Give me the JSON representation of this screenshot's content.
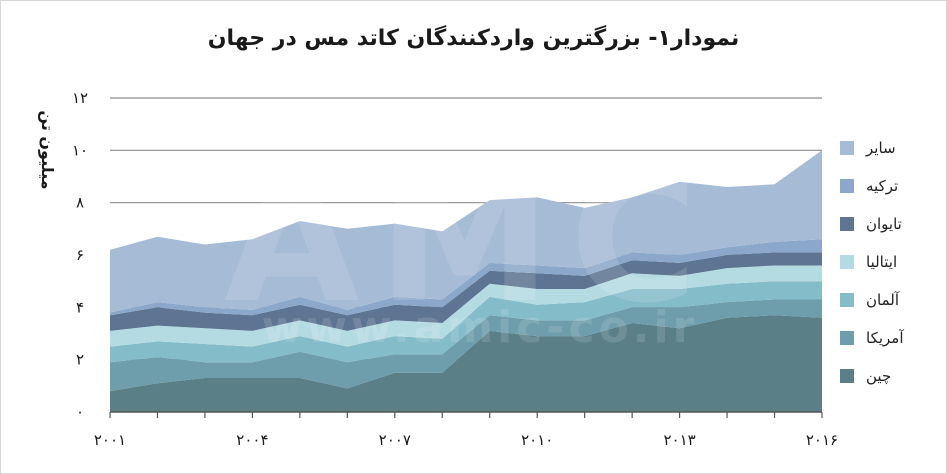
{
  "title": "نمودار۱- بزرگترین واردکنندگان کاتد مس در جهان",
  "watermark": {
    "big": "AMC",
    "url": "www.amic-co.ir"
  },
  "chart_data": {
    "type": "area",
    "stacked": true,
    "title": "نمودار۱- بزرگترین واردکنندگان کاتد مس در جهان",
    "xlabel": "",
    "ylabel": "میلیون تن",
    "x": [
      2001,
      2002,
      2003,
      2004,
      2005,
      2006,
      2007,
      2008,
      2009,
      2010,
      2011,
      2012,
      2013,
      2014,
      2015,
      2016
    ],
    "x_tick_labels": [
      "۲۰۰۱",
      "۲۰۰۴",
      "۲۰۰۷",
      "۲۰۱۰",
      "۲۰۱۳",
      "۲۰۱۶"
    ],
    "x_tick_values": [
      2001,
      2004,
      2007,
      2010,
      2013,
      2016
    ],
    "y_tick_labels": [
      "۰",
      "۲",
      "۴",
      "۶",
      "۸",
      "۱۰",
      "۱۲"
    ],
    "y_tick_values": [
      0,
      2,
      4,
      6,
      8,
      10,
      12
    ],
    "ylim": [
      0,
      12
    ],
    "xlim": [
      2001,
      2016
    ],
    "grid": true,
    "legend_position": "right",
    "series": [
      {
        "name": "چین",
        "color": "#5a7f87",
        "values": [
          0.8,
          1.1,
          1.3,
          1.3,
          1.3,
          0.9,
          1.5,
          1.5,
          3.1,
          2.9,
          2.9,
          3.4,
          3.2,
          3.6,
          3.7,
          3.6
        ]
      },
      {
        "name": "آمریکا",
        "color": "#6e9dac",
        "values": [
          1.1,
          1.0,
          0.6,
          0.6,
          1.0,
          1.0,
          0.7,
          0.7,
          0.6,
          0.6,
          0.6,
          0.6,
          0.8,
          0.6,
          0.6,
          0.7
        ]
      },
      {
        "name": "آلمان",
        "color": "#84bcc9",
        "values": [
          0.6,
          0.6,
          0.7,
          0.6,
          0.6,
          0.6,
          0.7,
          0.6,
          0.7,
          0.6,
          0.7,
          0.7,
          0.7,
          0.7,
          0.7,
          0.7
        ]
      },
      {
        "name": "ایتالیا",
        "color": "#b4dbe2",
        "values": [
          0.6,
          0.6,
          0.6,
          0.6,
          0.6,
          0.6,
          0.6,
          0.6,
          0.5,
          0.6,
          0.5,
          0.6,
          0.5,
          0.6,
          0.6,
          0.6
        ]
      },
      {
        "name": "تایوان",
        "color": "#5d7592",
        "values": [
          0.6,
          0.7,
          0.6,
          0.6,
          0.6,
          0.6,
          0.6,
          0.6,
          0.5,
          0.6,
          0.5,
          0.5,
          0.5,
          0.5,
          0.5,
          0.5
        ]
      },
      {
        "name": "ترکیه",
        "color": "#8ba8ca",
        "values": [
          0.1,
          0.2,
          0.2,
          0.2,
          0.3,
          0.2,
          0.3,
          0.3,
          0.3,
          0.3,
          0.3,
          0.3,
          0.3,
          0.3,
          0.4,
          0.5
        ]
      },
      {
        "name": "سایر",
        "color": "#a5bbd6",
        "values": [
          2.4,
          2.5,
          2.4,
          2.7,
          2.9,
          3.1,
          2.8,
          2.6,
          2.4,
          2.6,
          2.3,
          2.1,
          2.8,
          2.3,
          2.2,
          3.4
        ]
      }
    ]
  }
}
